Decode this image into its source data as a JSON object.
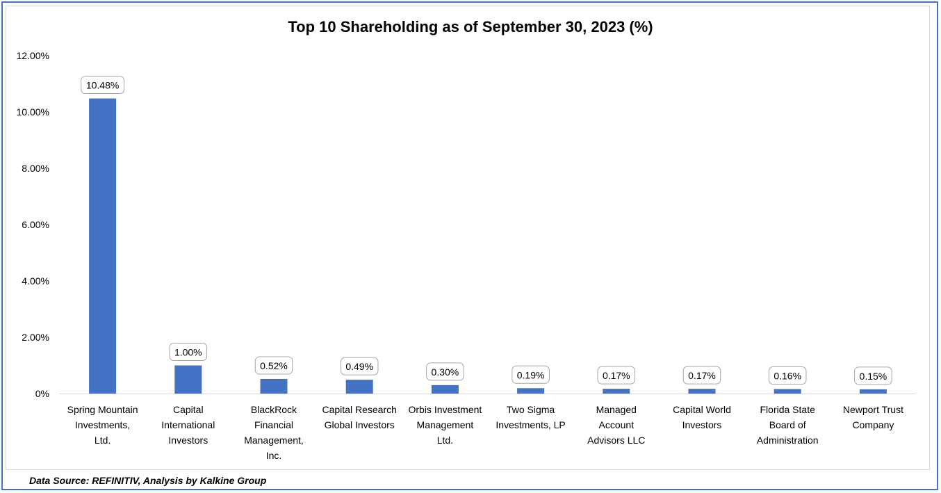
{
  "chart_data": {
    "type": "bar",
    "title": "Top 10 Shareholding as of September 30, 2023 (%)",
    "categories": [
      "Spring Mountain Investments, Ltd.",
      "Capital International Investors",
      "BlackRock Financial Management, Inc.",
      "Capital Research Global Investors",
      "Orbis Investment Management Ltd.",
      "Two Sigma Investments, LP",
      "Managed Account Advisors LLC",
      "Capital World Investors",
      "Florida State Board of Administration",
      "Newport Trust Company"
    ],
    "category_lines": [
      [
        "Spring Mountain",
        "Investments,",
        "Ltd."
      ],
      [
        "Capital",
        "International",
        "Investors"
      ],
      [
        "BlackRock",
        "Financial",
        "Management,",
        "Inc."
      ],
      [
        "Capital Research",
        "Global Investors"
      ],
      [
        "Orbis Investment",
        "Management",
        "Ltd."
      ],
      [
        "Two Sigma",
        "Investments, LP"
      ],
      [
        "Managed",
        "Account",
        "Advisors LLC"
      ],
      [
        "Capital World",
        "Investors"
      ],
      [
        "Florida State",
        "Board of",
        "Administration"
      ],
      [
        "Newport Trust",
        "Company"
      ]
    ],
    "values": [
      10.48,
      1.0,
      0.52,
      0.49,
      0.3,
      0.19,
      0.17,
      0.17,
      0.16,
      0.15
    ],
    "data_labels": [
      "10.48%",
      "1.00%",
      "0.52%",
      "0.49%",
      "0.30%",
      "0.19%",
      "0.17%",
      "0.17%",
      "0.16%",
      "0.15%"
    ],
    "y_ticks": [
      "0%",
      "2.00%",
      "4.00%",
      "6.00%",
      "8.00%",
      "10.00%",
      "12.00%"
    ],
    "ylim": [
      0,
      12
    ],
    "xlabel": "",
    "ylabel": "",
    "grid": false,
    "bar_color": "#4472c4"
  },
  "footer": {
    "source": "Data Source: REFINITIV, Analysis by Kalkine Group"
  }
}
